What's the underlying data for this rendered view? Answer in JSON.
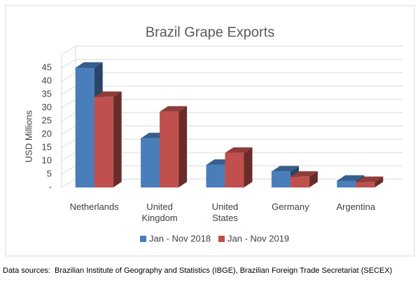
{
  "chart_data": {
    "type": "bar3d",
    "title": "Brazil Grape Exports",
    "y_label": "USD Millions",
    "categories": [
      "Netherlands",
      "United Kingdom",
      "United States",
      "Germany",
      "Argentina"
    ],
    "series": [
      {
        "name": "Jan - Nov 2018",
        "color": "#4a7ebb",
        "values": [
          45,
          18.5,
          8.5,
          6,
          2.5
        ]
      },
      {
        "name": "Jan - Nov 2019",
        "color": "#c0504d",
        "values": [
          34,
          28.5,
          13,
          4,
          2
        ]
      }
    ],
    "ylim": [
      0,
      50
    ],
    "yticks": [
      {
        "value": 0,
        "label": "-"
      },
      5,
      10,
      15,
      20,
      25,
      30,
      35,
      40,
      45
    ],
    "grid": true,
    "legend": "bottom",
    "source": "Data sources:  Brazilian Institute of Geography and Statistics (IBGE), Brazilian Foreign Trade Secretariat (SECEX)"
  }
}
